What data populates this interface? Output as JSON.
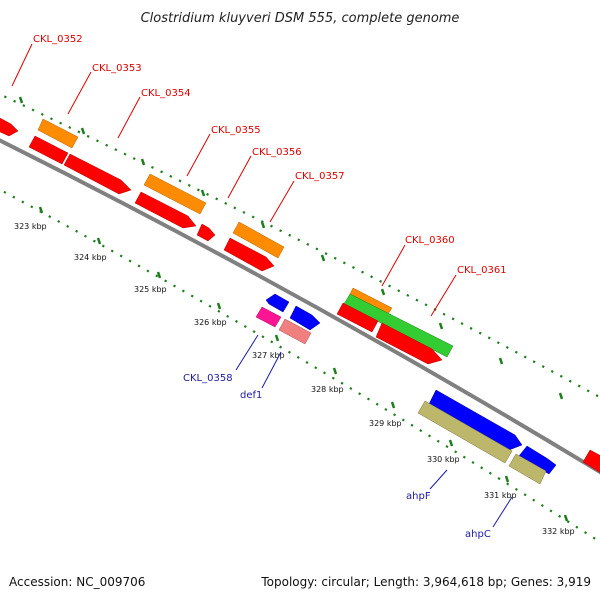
{
  "title": "Clostridium kluyveri DSM 555, complete genome",
  "footer": {
    "accession": "Accession: NC_009706",
    "summary": "Topology: circular; Length: 3,964,618 bp; Genes: 3,919"
  },
  "colors": {
    "backbone": "#808080",
    "tick": "#1e7e1e",
    "red": "#ff0000",
    "orange": "#ff8c00",
    "blue": "#0000ff",
    "green": "#33cc33",
    "olive": "#bdb76b",
    "pink": "#ff1493",
    "salmon": "#f08080",
    "label_red": "#e00000",
    "label_blue": "#1a1aa6"
  },
  "kbp_ticks": [
    "323 kbp",
    "324 kbp",
    "325 kbp",
    "326 kbp",
    "327 kbp",
    "328 kbp",
    "329 kbp",
    "330 kbp",
    "331 kbp",
    "332 kbp"
  ],
  "gene_labels_top": [
    "CKL_0352",
    "CKL_0353",
    "CKL_0354",
    "CKL_0355",
    "CKL_0356",
    "CKL_0357",
    "CKL_0360",
    "CKL_0361"
  ],
  "gene_labels_bottom": [
    "CKL_0358",
    "def1",
    "ahpF",
    "ahpC"
  ]
}
